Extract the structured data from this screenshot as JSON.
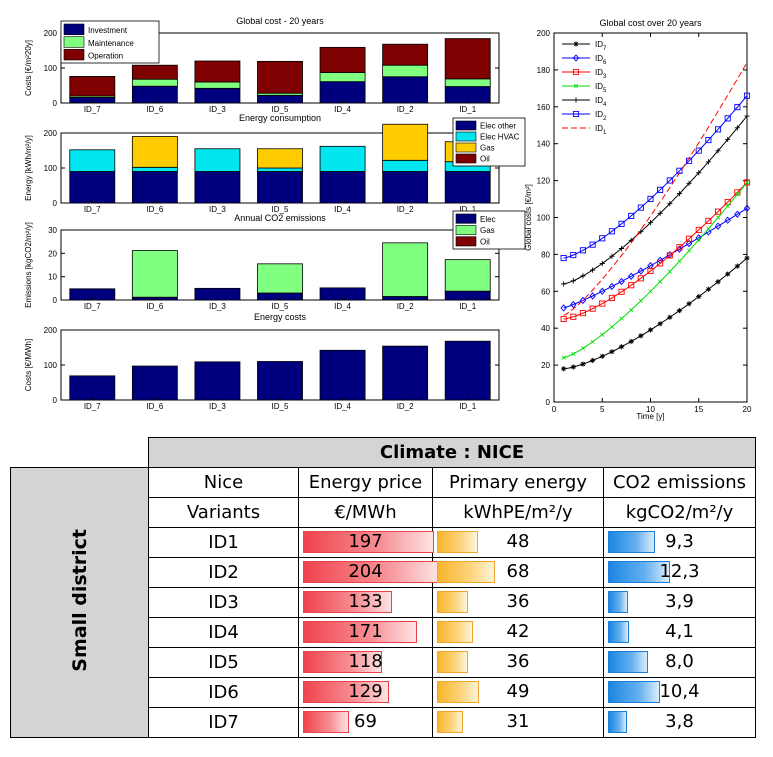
{
  "chart_data": [
    {
      "id": "global_cost",
      "type": "bar",
      "stacked": true,
      "title": "Global cost - 20 years",
      "ylabel": "Costs [€/m²20y]",
      "ylim": [
        0,
        200
      ],
      "yticks": [
        0,
        100,
        200
      ],
      "legend": "top-left",
      "categories": [
        "ID_7",
        "ID_6",
        "ID_3",
        "ID_5",
        "ID_4",
        "ID_2",
        "ID_1"
      ],
      "series": [
        {
          "name": "Investment",
          "color": "#00007f",
          "values": [
            16,
            48,
            42,
            22,
            61,
            75,
            47
          ]
        },
        {
          "name": "Maintenance",
          "color": "#80ff80",
          "values": [
            4,
            20,
            18,
            6,
            26,
            33,
            22
          ]
        },
        {
          "name": "Operation",
          "color": "#7f0000",
          "values": [
            56,
            40,
            60,
            91,
            72,
            60,
            115
          ]
        }
      ]
    },
    {
      "id": "energy",
      "type": "bar",
      "stacked": true,
      "title": "Energy consumption",
      "ylabel": "Energy [kWh/m²/y]",
      "ylim": [
        0,
        200
      ],
      "yticks": [
        0,
        100,
        200
      ],
      "legend": "top-right",
      "categories": [
        "ID_7",
        "ID_6",
        "ID_3",
        "ID_5",
        "ID_4",
        "ID_2",
        "ID_1"
      ],
      "series": [
        {
          "name": "Elec other",
          "color": "#00007f",
          "values": [
            90,
            90,
            90,
            90,
            90,
            90,
            90
          ]
        },
        {
          "name": "Elec HVAC",
          "color": "#00e5ee",
          "values": [
            62,
            12,
            65,
            10,
            72,
            32,
            28
          ]
        },
        {
          "name": "Gas",
          "color": "#ffcc00",
          "values": [
            0,
            88,
            0,
            55,
            0,
            103,
            57
          ]
        },
        {
          "name": "Oil",
          "color": "#7f0000",
          "values": [
            0,
            0,
            0,
            0,
            0,
            0,
            0
          ]
        }
      ]
    },
    {
      "id": "co2",
      "type": "bar",
      "stacked": true,
      "title": "Annual CO2 emissions",
      "ylabel": "Emissions [kgCO2/m²/y]",
      "ylim": [
        0,
        30
      ],
      "yticks": [
        0,
        10,
        20,
        30
      ],
      "legend": "top-right",
      "categories": [
        "ID_7",
        "ID_6",
        "ID_3",
        "ID_5",
        "ID_4",
        "ID_2",
        "ID_1"
      ],
      "series": [
        {
          "name": "Elec",
          "color": "#00007f",
          "values": [
            4.8,
            1.2,
            5.0,
            3.0,
            5.2,
            1.5,
            3.8
          ]
        },
        {
          "name": "Gas",
          "color": "#80ff80",
          "values": [
            0,
            20.0,
            0,
            12.5,
            0,
            23.0,
            13.5
          ]
        },
        {
          "name": "Oil",
          "color": "#7f0000",
          "values": [
            0,
            0,
            0,
            0,
            0,
            0,
            0
          ]
        }
      ]
    },
    {
      "id": "energy_costs",
      "type": "bar",
      "stacked": false,
      "title": "Energy costs",
      "ylabel": "Costs [€/MWh]",
      "ylim": [
        0,
        200
      ],
      "yticks": [
        0,
        100,
        200
      ],
      "categories": [
        "ID_7",
        "ID_6",
        "ID_3",
        "ID_5",
        "ID_4",
        "ID_2",
        "ID_1"
      ],
      "series": [
        {
          "name": "Energy cost",
          "color": "#00007f",
          "values": [
            69,
            97,
            109,
            110,
            142,
            154,
            168
          ]
        }
      ]
    },
    {
      "id": "global_cost_time",
      "type": "line",
      "title": "Global cost over 20 years",
      "xlabel": "Time [y]",
      "ylabel": "Global costs [€/m²]",
      "xlim": [
        0,
        20
      ],
      "ylim": [
        0,
        200
      ],
      "xticks": [
        0,
        5,
        10,
        15,
        20
      ],
      "yticks": [
        0,
        20,
        40,
        60,
        80,
        100,
        120,
        140,
        160,
        180,
        200
      ],
      "legend": "top-left",
      "series": [
        {
          "name": "ID",
          "sub": "7",
          "color": "#000000",
          "marker": "asterisk",
          "start": 18,
          "end": 78,
          "exp": 1.4
        },
        {
          "name": "ID",
          "sub": "6",
          "color": "#0000ff",
          "marker": "diamond",
          "start": 51,
          "end": 105,
          "exp": 1.15
        },
        {
          "name": "ID",
          "sub": "3",
          "color": "#ff0000",
          "marker": "square",
          "start": 45,
          "end": 119,
          "exp": 1.4
        },
        {
          "name": "ID",
          "sub": "5",
          "color": "#00dd00",
          "marker": "x",
          "start": 24,
          "end": 119,
          "exp": 1.3
        },
        {
          "name": "ID",
          "sub": "4",
          "color": "#000000",
          "marker": "plus",
          "start": 64,
          "end": 155,
          "exp": 1.35
        },
        {
          "name": "ID",
          "sub": "2",
          "color": "#0000ff",
          "marker": "square",
          "start": 78,
          "end": 166,
          "exp": 1.35
        },
        {
          "name": "ID",
          "sub": "1",
          "color": "#ff0000",
          "marker": "dash",
          "start": 47,
          "end": 184,
          "exp": 1.25
        }
      ]
    }
  ],
  "table": {
    "title": "Climate : NICE",
    "row_group": "Small district",
    "headers": [
      "Nice",
      "Energy price",
      "Primary energy",
      "CO2 emissions"
    ],
    "units": [
      "Variants",
      "€/MWh",
      "kWhPE/m²/y",
      "kgCO2/m²/y"
    ],
    "rows": [
      {
        "variant": "ID1",
        "price": "197",
        "primary": "48",
        "co2": "9,3"
      },
      {
        "variant": "ID2",
        "price": "204",
        "primary": "68",
        "co2": "12,3"
      },
      {
        "variant": "ID3",
        "price": "133",
        "primary": "36",
        "co2": "3,9"
      },
      {
        "variant": "ID4",
        "price": "171",
        "primary": "42",
        "co2": "4,1"
      },
      {
        "variant": "ID5",
        "price": "118",
        "primary": "36",
        "co2": "8,0"
      },
      {
        "variant": "ID6",
        "price": "129",
        "primary": "49",
        "co2": "10,4"
      },
      {
        "variant": "ID7",
        "price": "69",
        "primary": "31",
        "co2": "3,8"
      }
    ],
    "bar_max": {
      "price": 204,
      "primary": 68,
      "co2": 12.3
    }
  }
}
